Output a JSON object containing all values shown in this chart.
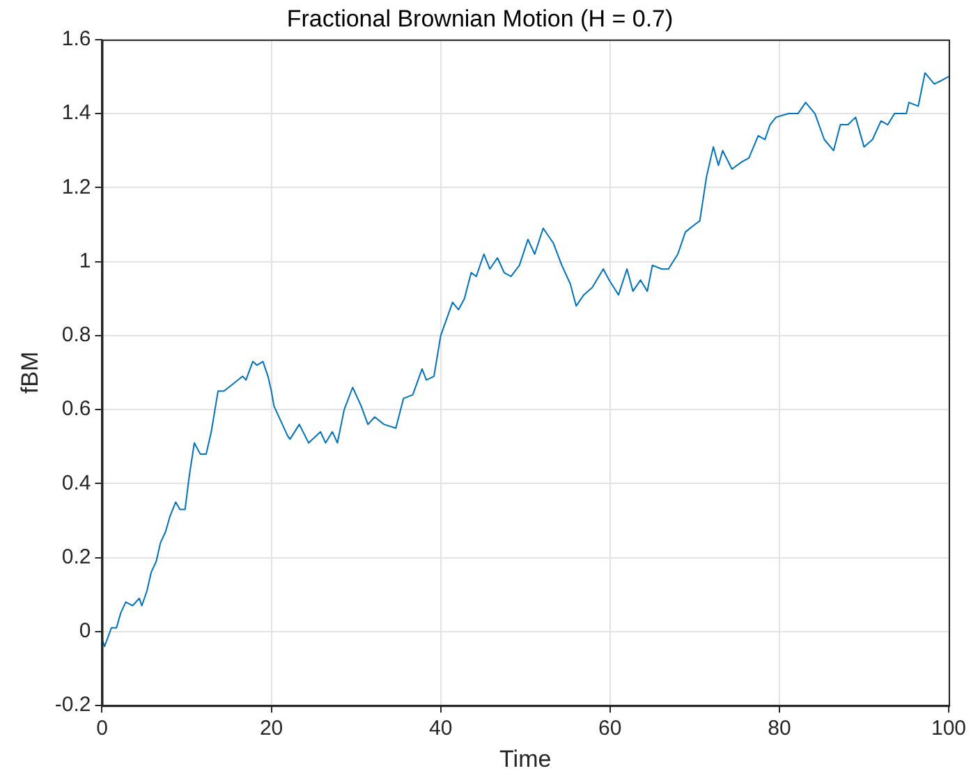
{
  "chart_data": {
    "type": "line",
    "title": "Fractional Brownian Motion (H = 0.7)",
    "xlabel": "Time",
    "ylabel": "fBM",
    "x": [
      0,
      0.3,
      1.1,
      1.7,
      2.2,
      2.8,
      3.6,
      4.4,
      4.7,
      5.3,
      5.8,
      6.4,
      6.9,
      7.5,
      8,
      8.7,
      9.2,
      9.8,
      10.3,
      10.9,
      11.6,
      12.3,
      12.9,
      13.7,
      14.4,
      15.5,
      16.6,
      17,
      17.8,
      18.3,
      19,
      19.6,
      20,
      20.3,
      21.9,
      22.2,
      23.3,
      24.4,
      25.8,
      26.4,
      27.2,
      27.8,
      28.6,
      29.6,
      30.6,
      31.4,
      32.2,
      33.3,
      34.7,
      35.6,
      36.7,
      37.8,
      38.3,
      39.2,
      40,
      41.4,
      42.1,
      42.8,
      43.6,
      44.2,
      45.1,
      45.8,
      46.7,
      47.5,
      48.3,
      49.3,
      50.3,
      51.1,
      52.1,
      53.3,
      54.3,
      55.3,
      56,
      56.9,
      57.9,
      59.2,
      59.9,
      61,
      62,
      62.7,
      63.6,
      64.4,
      65,
      66.1,
      66.9,
      68,
      68.9,
      70,
      70.6,
      71.4,
      72.2,
      72.8,
      73.3,
      74.4,
      75.6,
      76.4,
      77.5,
      78.3,
      78.9,
      79.6,
      81.1,
      82.2,
      83.1,
      84.2,
      85.3,
      86.4,
      87.2,
      88.1,
      89,
      90,
      91,
      92,
      92.8,
      93.6,
      95,
      95.3,
      96.4,
      97.2,
      98.3,
      99.2,
      100
    ],
    "series": [
      {
        "color": "#0072bd",
        "values": [
          -0.02,
          -0.04,
          0.01,
          0.01,
          0.05,
          0.08,
          0.07,
          0.09,
          0.07,
          0.11,
          0.16,
          0.19,
          0.24,
          0.27,
          0.31,
          0.35,
          0.33,
          0.33,
          0.42,
          0.51,
          0.48,
          0.48,
          0.54,
          0.65,
          0.65,
          0.67,
          0.69,
          0.68,
          0.73,
          0.72,
          0.73,
          0.69,
          0.65,
          0.61,
          0.53,
          0.52,
          0.56,
          0.51,
          0.54,
          0.51,
          0.54,
          0.51,
          0.6,
          0.66,
          0.61,
          0.56,
          0.58,
          0.56,
          0.55,
          0.63,
          0.64,
          0.71,
          0.68,
          0.69,
          0.8,
          0.89,
          0.87,
          0.9,
          0.97,
          0.96,
          1.02,
          0.98,
          1.01,
          0.97,
          0.96,
          0.99,
          1.06,
          1.02,
          1.09,
          1.05,
          0.99,
          0.94,
          0.88,
          0.91,
          0.93,
          0.98,
          0.95,
          0.91,
          0.98,
          0.92,
          0.95,
          0.92,
          0.99,
          0.98,
          0.98,
          1.02,
          1.08,
          1.1,
          1.11,
          1.23,
          1.31,
          1.26,
          1.3,
          1.25,
          1.27,
          1.28,
          1.34,
          1.33,
          1.37,
          1.39,
          1.4,
          1.4,
          1.43,
          1.4,
          1.33,
          1.3,
          1.37,
          1.37,
          1.39,
          1.31,
          1.33,
          1.38,
          1.37,
          1.4,
          1.4,
          1.43,
          1.42,
          1.51,
          1.48,
          1.49,
          1.5
        ]
      }
    ],
    "xlim": [
      0,
      100
    ],
    "xticks": [
      0,
      20,
      40,
      60,
      80,
      100
    ],
    "ylim": [
      -0.2,
      1.6
    ],
    "yticks": [
      -0.2,
      0,
      0.2,
      0.4,
      0.6,
      0.8,
      1,
      1.2,
      1.4,
      1.6
    ],
    "grid": true,
    "legend": false,
    "marker": "none",
    "line_style": "solid"
  }
}
